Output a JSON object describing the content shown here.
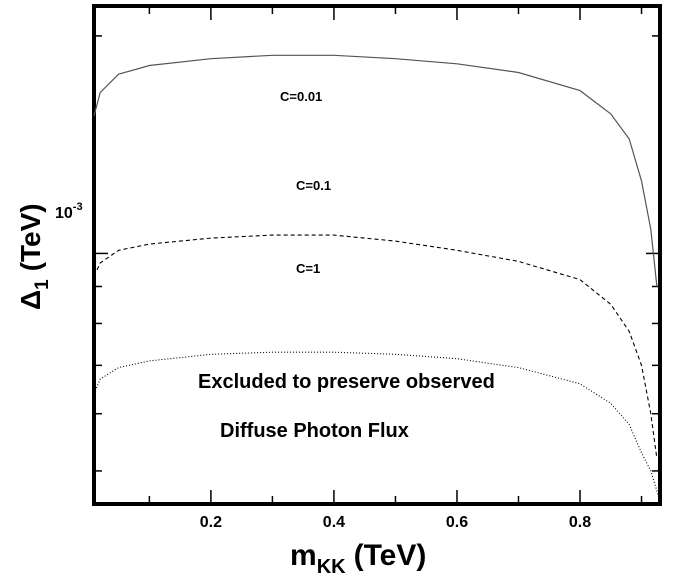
{
  "chart_data": {
    "type": "line",
    "xlabel": "m",
    "xlabel_sub": "KK",
    "xlabel_unit": "(TeV)",
    "ylabel": "Δ",
    "ylabel_sub": "1",
    "ylabel_unit": "(TeV)",
    "xlim": [
      0.01,
      0.93
    ],
    "ylim": [
      0.00045,
      0.0022
    ],
    "y_scale": "log",
    "grid": false,
    "x_ticks": [
      {
        "value": 0.2,
        "label": "0.2"
      },
      {
        "value": 0.4,
        "label": "0.4"
      },
      {
        "value": 0.6,
        "label": "0.6"
      },
      {
        "value": 0.8,
        "label": "0.8"
      }
    ],
    "y_tick_label": {
      "value": 0.001,
      "base": "10",
      "exponent": "-3"
    },
    "series": [
      {
        "label": "C=0.01",
        "style": "solid",
        "x": [
          0.01,
          0.02,
          0.05,
          0.1,
          0.2,
          0.3,
          0.4,
          0.5,
          0.6,
          0.7,
          0.8,
          0.85,
          0.88,
          0.9,
          0.915,
          0.925
        ],
        "y": [
          0.00155,
          0.00167,
          0.00177,
          0.00182,
          0.00186,
          0.00188,
          0.00188,
          0.00186,
          0.00183,
          0.00178,
          0.00168,
          0.00156,
          0.00144,
          0.00126,
          0.00108,
          0.0009
        ]
      },
      {
        "label": "C=0.1",
        "style": "dashed",
        "x": [
          0.01,
          0.02,
          0.05,
          0.1,
          0.2,
          0.3,
          0.4,
          0.5,
          0.6,
          0.7,
          0.8,
          0.85,
          0.88,
          0.9,
          0.915,
          0.925
        ],
        "y": [
          0.00093,
          0.00097,
          0.00101,
          0.00103,
          0.00105,
          0.00106,
          0.00106,
          0.00104,
          0.00101,
          0.000975,
          0.00092,
          0.00085,
          0.00078,
          0.0007,
          0.0006,
          0.00052
        ]
      },
      {
        "label": "C=1",
        "style": "dotted",
        "x": [
          0.01,
          0.02,
          0.05,
          0.1,
          0.2,
          0.3,
          0.4,
          0.5,
          0.6,
          0.7,
          0.8,
          0.85,
          0.88,
          0.9,
          0.915,
          0.928
        ],
        "y": [
          0.00064,
          0.00067,
          0.000695,
          0.00071,
          0.000725,
          0.00073,
          0.00073,
          0.000725,
          0.000715,
          0.000695,
          0.00066,
          0.00062,
          0.00058,
          0.00053,
          0.0005,
          0.00046
        ]
      }
    ],
    "annotations": [
      "Excluded to preserve observed",
      "Diffuse Photon Flux"
    ],
    "curve_labels": [
      "C=0.01",
      "C=0.1",
      "C=1"
    ]
  }
}
